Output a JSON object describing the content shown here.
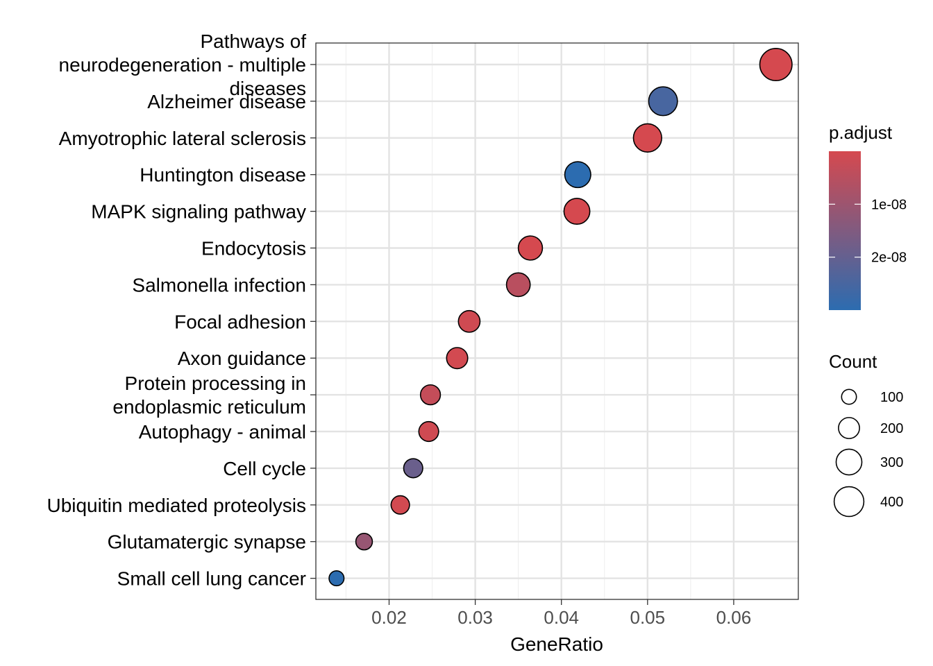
{
  "chart_data": {
    "type": "scatter",
    "xlabel": "GeneRatio",
    "ylabel": "",
    "xlim": [
      0.0115,
      0.0675
    ],
    "xticks": [
      0.02,
      0.03,
      0.04,
      0.05,
      0.06
    ],
    "xtick_labels": [
      "0.02",
      "0.03",
      "0.04",
      "0.05",
      "0.06"
    ],
    "grid": true,
    "categories": [
      [
        "Pathways of",
        "neurodegeneration - multiple",
        "diseases"
      ],
      [
        "Alzheimer disease"
      ],
      [
        "Amyotrophic lateral sclerosis"
      ],
      [
        "Huntington disease"
      ],
      [
        "MAPK signaling pathway"
      ],
      [
        "Endocytosis"
      ],
      [
        "Salmonella infection"
      ],
      [
        "Focal adhesion"
      ],
      [
        "Axon guidance"
      ],
      [
        "Protein processing in",
        "endoplasmic reticulum"
      ],
      [
        "Autophagy - animal"
      ],
      [
        "Cell cycle"
      ],
      [
        "Ubiquitin mediated proteolysis"
      ],
      [
        "Glutamatergic synapse"
      ],
      [
        "Small cell lung cancer"
      ]
    ],
    "points": [
      {
        "gene_ratio": 0.0649,
        "count": 470,
        "p_adjust": 1e-12
      },
      {
        "gene_ratio": 0.0518,
        "count": 375,
        "p_adjust": 2.5e-08
      },
      {
        "gene_ratio": 0.05,
        "count": 362,
        "p_adjust": 5e-11
      },
      {
        "gene_ratio": 0.0419,
        "count": 305,
        "p_adjust": 3e-08
      },
      {
        "gene_ratio": 0.0418,
        "count": 303,
        "p_adjust": 5e-11
      },
      {
        "gene_ratio": 0.0364,
        "count": 264,
        "p_adjust": 5e-11
      },
      {
        "gene_ratio": 0.035,
        "count": 254,
        "p_adjust": 5e-09
      },
      {
        "gene_ratio": 0.0293,
        "count": 212,
        "p_adjust": 1e-09
      },
      {
        "gene_ratio": 0.0279,
        "count": 202,
        "p_adjust": 5e-10
      },
      {
        "gene_ratio": 0.0248,
        "count": 180,
        "p_adjust": 3e-09
      },
      {
        "gene_ratio": 0.0246,
        "count": 178,
        "p_adjust": 1e-09
      },
      {
        "gene_ratio": 0.0228,
        "count": 165,
        "p_adjust": 1.9e-08
      },
      {
        "gene_ratio": 0.0213,
        "count": 154,
        "p_adjust": 5e-10
      },
      {
        "gene_ratio": 0.0171,
        "count": 124,
        "p_adjust": 1.1e-08
      },
      {
        "gene_ratio": 0.0139,
        "count": 101,
        "p_adjust": 3e-08
      }
    ],
    "color_legend": {
      "title": "p.adjust",
      "ticks": [
        1e-08,
        2e-08
      ],
      "tick_labels": [
        "1e-08",
        "2e-08"
      ],
      "range": [
        0,
        3e-08
      ],
      "low_color": "#d5494f",
      "high_color": "#2c6cb0"
    },
    "size_legend": {
      "title": "Count",
      "values": [
        100,
        200,
        300,
        400
      ],
      "labels": [
        "100",
        "200",
        "300",
        "400"
      ]
    },
    "legend_position": "right"
  }
}
